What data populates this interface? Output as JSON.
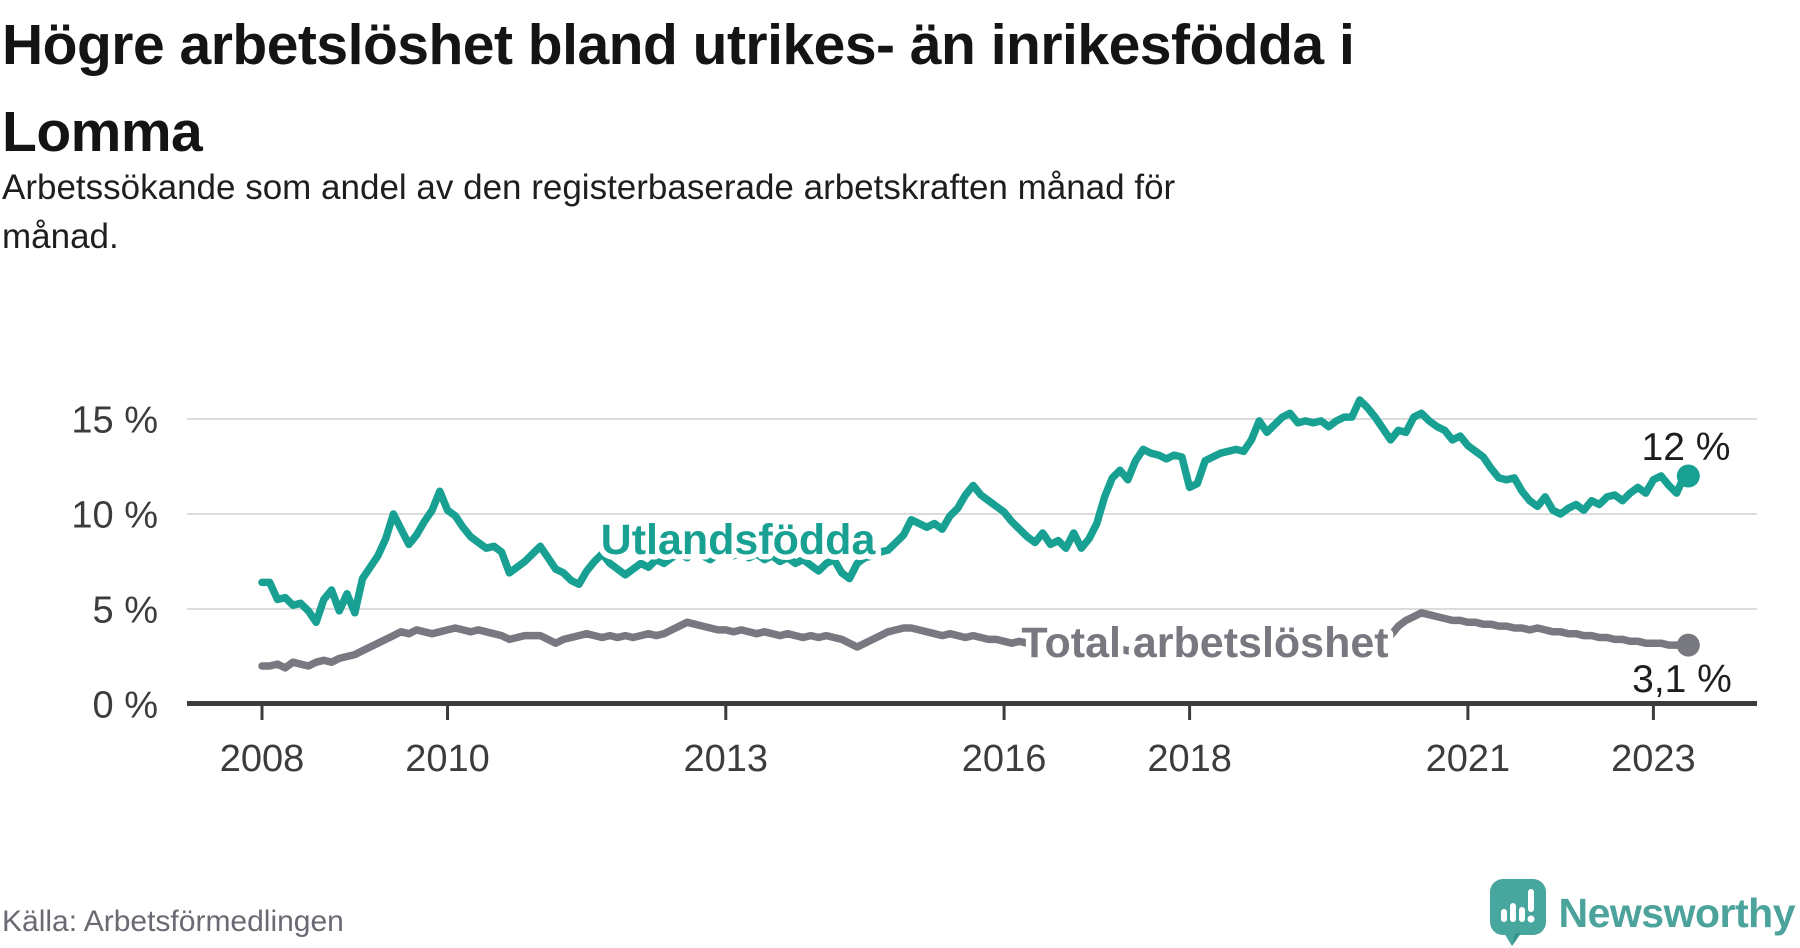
{
  "header": {
    "title_line1": "Högre arbetslöshet bland utrikes- än inrikesfödda i",
    "title_line2": "Lomma",
    "subtitle_line1": "Arbetssökande som andel av den registerbaserade arbetskraften månad för",
    "subtitle_line2": "månad."
  },
  "footer": {
    "source": "Källa: Arbetsförmedlingen",
    "brand": "Newsworthy"
  },
  "colors": {
    "teal_line": "#18a193",
    "gray_line": "#787880",
    "grid": "#dcdcdc",
    "axis": "#3c3c3c",
    "brand_teal": "#4ba39c",
    "end_label_text": "#1e1e1e"
  },
  "chart_data": {
    "type": "line",
    "title": "Högre arbetslöshet bland utrikes- än inrikesfödda i Lomma",
    "subtitle": "Arbetssökande som andel av den registerbaserade arbetskraften månad för månad.",
    "source": "Källa: Arbetsförmedlingen",
    "frequency": "monthly",
    "x_start": "2008-01",
    "x_end": "2023-05",
    "xlabel": "",
    "ylabel": "",
    "ylim": [
      0,
      16.5
    ],
    "grid": "horizontal",
    "y_ticks": [
      {
        "value": 0,
        "label": "0 %"
      },
      {
        "value": 5,
        "label": "5 %"
      },
      {
        "value": 10,
        "label": "10 %"
      },
      {
        "value": 15,
        "label": "15 %"
      }
    ],
    "x_ticks": [
      {
        "month_index": 0,
        "label": "2008"
      },
      {
        "month_index": 24,
        "label": "2010"
      },
      {
        "month_index": 60,
        "label": "2013"
      },
      {
        "month_index": 96,
        "label": "2016"
      },
      {
        "month_index": 120,
        "label": "2018"
      },
      {
        "month_index": 156,
        "label": "2021"
      },
      {
        "month_index": 180,
        "label": "2023"
      }
    ],
    "series": [
      {
        "name": "Utlandsfödda",
        "slug": "utlandsfodda",
        "color": "#18a193",
        "end_label": "12 %",
        "end_value": 12.0,
        "values": [
          6.4,
          6.4,
          5.5,
          5.6,
          5.2,
          5.3,
          4.9,
          4.3,
          5.5,
          6.0,
          4.9,
          5.8,
          4.8,
          6.6,
          7.2,
          7.8,
          8.7,
          10.0,
          9.2,
          8.4,
          8.9,
          9.6,
          10.2,
          11.2,
          10.2,
          9.9,
          9.3,
          8.8,
          8.5,
          8.2,
          8.3,
          8.0,
          6.9,
          7.2,
          7.5,
          7.9,
          8.3,
          7.7,
          7.1,
          6.9,
          6.5,
          6.3,
          7.0,
          7.5,
          7.9,
          7.4,
          7.1,
          6.8,
          7.1,
          7.4,
          7.2,
          7.6,
          7.4,
          7.7,
          7.9,
          7.7,
          8.0,
          7.8,
          7.6,
          7.9,
          8.1,
          7.8,
          8.0,
          7.7,
          7.9,
          7.6,
          7.8,
          7.5,
          7.7,
          7.4,
          7.6,
          7.3,
          7.0,
          7.4,
          7.6,
          6.9,
          6.6,
          7.4,
          7.7,
          7.8,
          8.0,
          8.1,
          8.5,
          8.9,
          9.7,
          9.5,
          9.3,
          9.5,
          9.2,
          9.9,
          10.3,
          11.0,
          11.5,
          11.0,
          10.7,
          10.4,
          10.1,
          9.6,
          9.2,
          8.8,
          8.5,
          9.0,
          8.4,
          8.6,
          8.2,
          9.0,
          8.2,
          8.7,
          9.5,
          10.9,
          11.9,
          12.3,
          11.8,
          12.8,
          13.4,
          13.2,
          13.1,
          12.9,
          13.1,
          13.0,
          11.4,
          11.6,
          12.8,
          13.0,
          13.2,
          13.3,
          13.4,
          13.3,
          13.9,
          14.9,
          14.3,
          14.7,
          15.1,
          15.3,
          14.8,
          14.9,
          14.8,
          14.9,
          14.6,
          14.9,
          15.1,
          15.1,
          16.0,
          15.6,
          15.1,
          14.5,
          13.9,
          14.4,
          14.3,
          15.1,
          15.3,
          14.9,
          14.6,
          14.4,
          13.9,
          14.1,
          13.6,
          13.3,
          13.0,
          12.4,
          11.9,
          11.8,
          11.9,
          11.2,
          10.7,
          10.4,
          10.9,
          10.2,
          10.0,
          10.3,
          10.5,
          10.2,
          10.7,
          10.5,
          10.9,
          11.0,
          10.7,
          11.1,
          11.4,
          11.1,
          11.8,
          12.0,
          11.5,
          11.1,
          12.0
        ]
      },
      {
        "name": "Total arbetslöshet",
        "slug": "total-arbetsloshet",
        "color": "#787880",
        "end_label": "3,1 %",
        "end_value": 3.1,
        "values": [
          2.0,
          2.0,
          2.1,
          1.9,
          2.2,
          2.1,
          2.0,
          2.2,
          2.3,
          2.2,
          2.4,
          2.5,
          2.6,
          2.8,
          3.0,
          3.2,
          3.4,
          3.6,
          3.8,
          3.7,
          3.9,
          3.8,
          3.7,
          3.8,
          3.9,
          4.0,
          3.9,
          3.8,
          3.9,
          3.8,
          3.7,
          3.6,
          3.4,
          3.5,
          3.6,
          3.6,
          3.6,
          3.4,
          3.2,
          3.4,
          3.5,
          3.6,
          3.7,
          3.6,
          3.5,
          3.6,
          3.5,
          3.6,
          3.5,
          3.6,
          3.7,
          3.6,
          3.7,
          3.9,
          4.1,
          4.3,
          4.2,
          4.1,
          4.0,
          3.9,
          3.9,
          3.8,
          3.9,
          3.8,
          3.7,
          3.8,
          3.7,
          3.6,
          3.7,
          3.6,
          3.5,
          3.6,
          3.5,
          3.6,
          3.5,
          3.4,
          3.2,
          3.0,
          3.2,
          3.4,
          3.6,
          3.8,
          3.9,
          4.0,
          4.0,
          3.9,
          3.8,
          3.7,
          3.6,
          3.7,
          3.6,
          3.5,
          3.6,
          3.5,
          3.4,
          3.4,
          3.3,
          3.2,
          3.3,
          3.2,
          3.1,
          3.2,
          3.1,
          3.0,
          3.1,
          3.0,
          3.1,
          3.0,
          3.0,
          2.9,
          3.0,
          2.9,
          2.8,
          2.9,
          2.8,
          2.9,
          2.8,
          2.9,
          2.8,
          2.9,
          2.8,
          2.8,
          2.9,
          2.8,
          2.8,
          2.9,
          2.8,
          2.9,
          2.9,
          3.0,
          2.9,
          3.0,
          3.0,
          3.0,
          3.1,
          3.0,
          3.1,
          3.1,
          3.2,
          3.1,
          3.2,
          3.2,
          3.3,
          3.2,
          3.3,
          3.4,
          3.6,
          4.1,
          4.4,
          4.6,
          4.8,
          4.7,
          4.6,
          4.5,
          4.4,
          4.4,
          4.3,
          4.3,
          4.2,
          4.2,
          4.1,
          4.1,
          4.0,
          4.0,
          3.9,
          4.0,
          3.9,
          3.8,
          3.8,
          3.7,
          3.7,
          3.6,
          3.6,
          3.5,
          3.5,
          3.4,
          3.4,
          3.3,
          3.3,
          3.2,
          3.2,
          3.2,
          3.1,
          3.1,
          3.1
        ]
      }
    ],
    "legend_position": "inline-labels"
  }
}
